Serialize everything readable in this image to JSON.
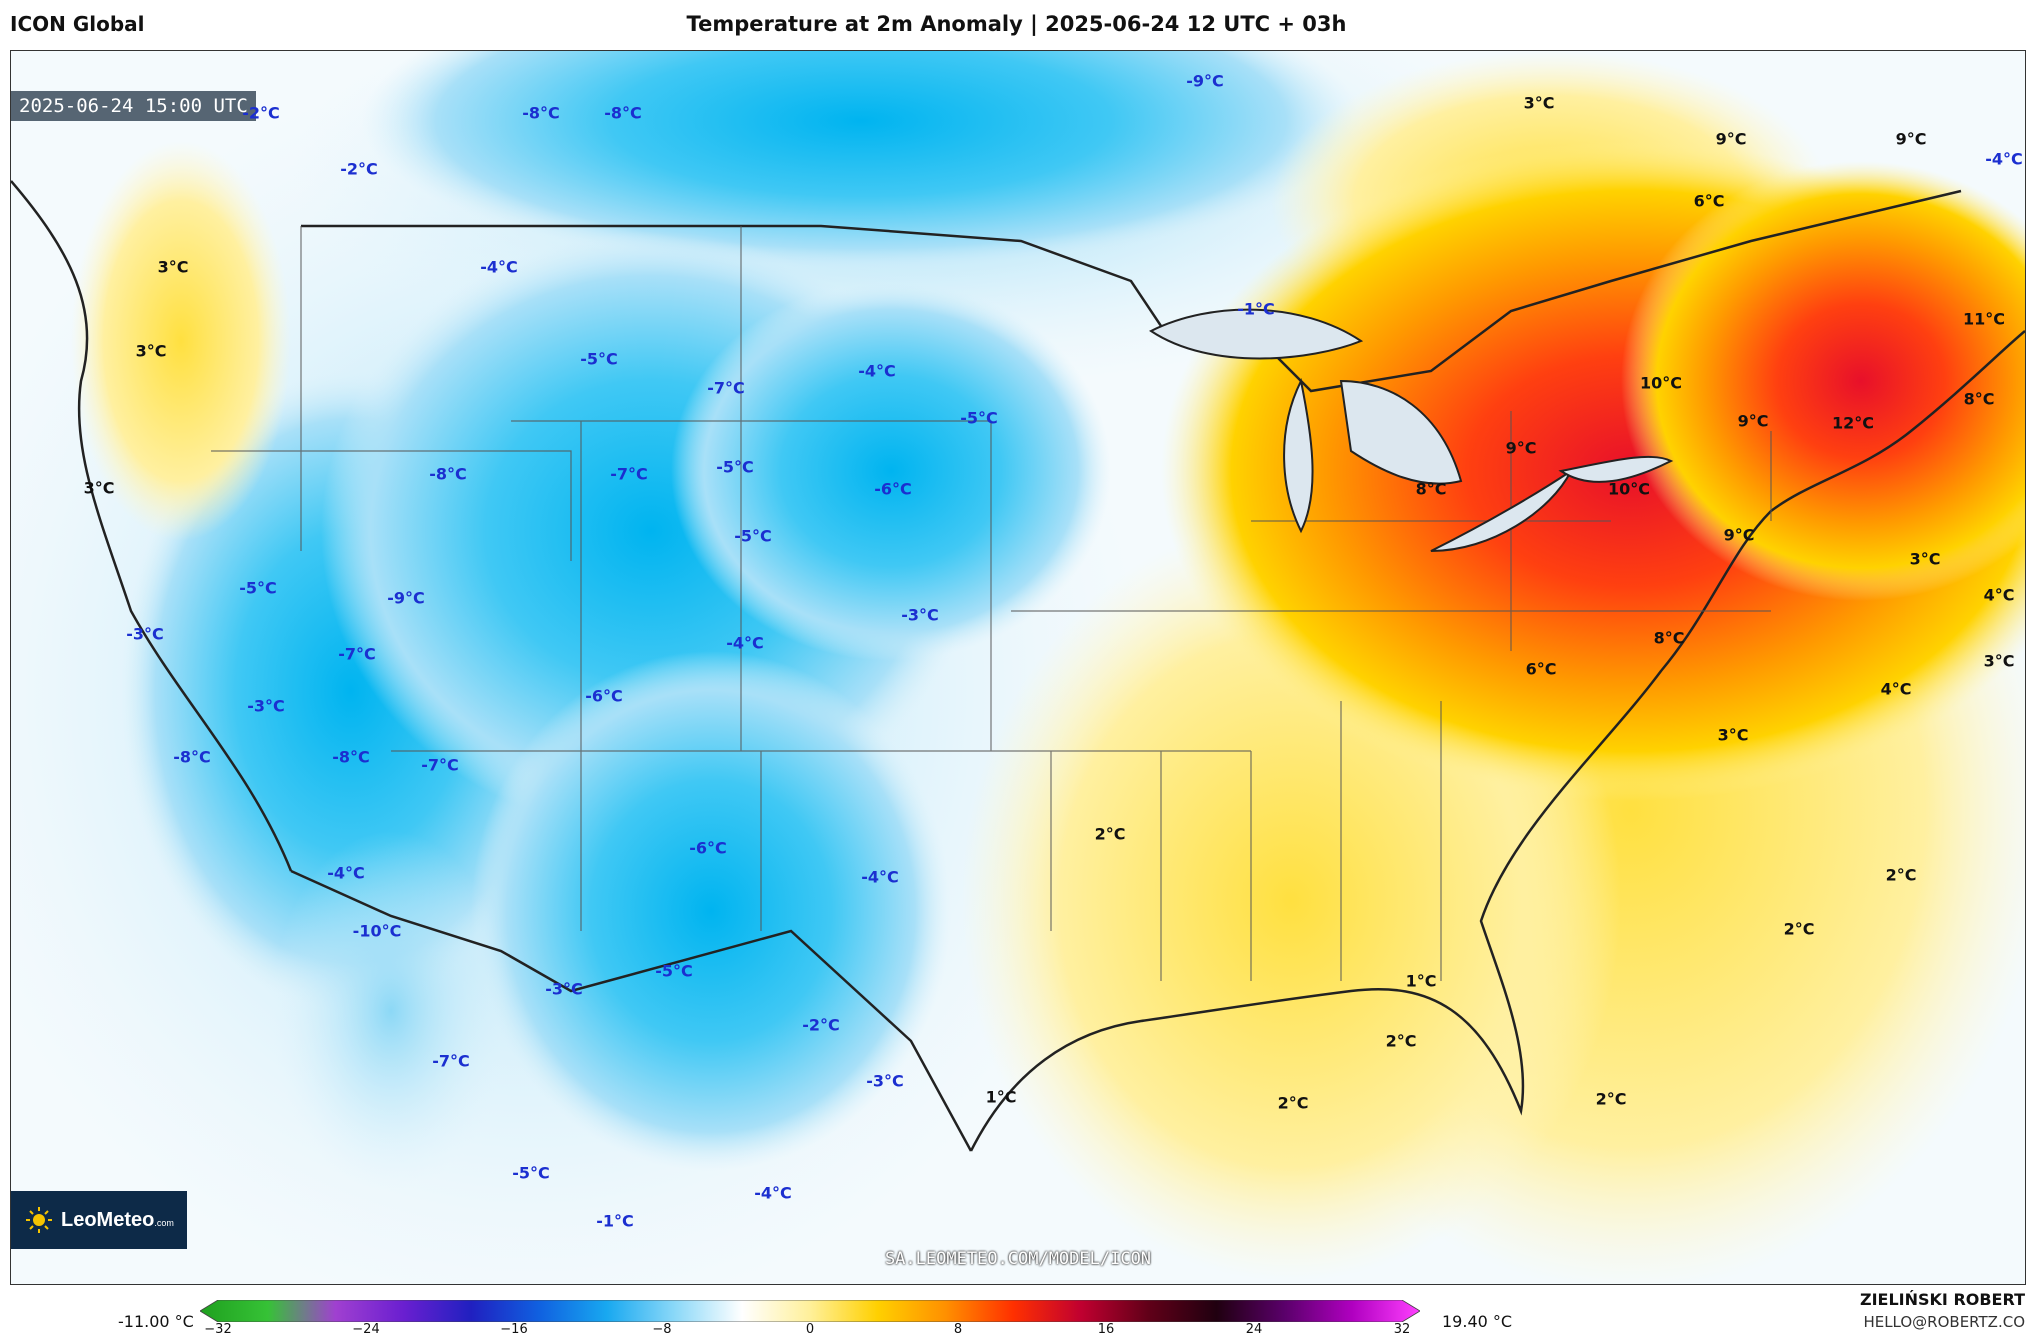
{
  "header": {
    "model": "ICON Global",
    "title": "Temperature at 2m Anomaly | 2025-06-24 12 UTC + 03h"
  },
  "map": {
    "valid_time": "2025-06-24 15:00 UTC",
    "source_url": "SA.LEOMETEO.COM/MODEL/ICON",
    "logo_text": "LeoMeteo",
    "logo_suffix": ".com",
    "labels": [
      {
        "text": "-2°C",
        "kind": "cold"
      },
      {
        "text": "-8°C",
        "kind": "cold"
      },
      {
        "text": "-8°C",
        "kind": "cold"
      },
      {
        "text": "-9°C",
        "kind": "cold"
      },
      {
        "text": "3°C",
        "kind": "warm"
      },
      {
        "text": "9°C",
        "kind": "warm"
      },
      {
        "text": "9°C",
        "kind": "warm"
      },
      {
        "text": "-4°C",
        "kind": "cold"
      },
      {
        "text": "-2°C",
        "kind": "cold"
      },
      {
        "text": "6°C",
        "kind": "warm"
      },
      {
        "text": "3°C",
        "kind": "warm"
      },
      {
        "text": "-4°C",
        "kind": "cold"
      },
      {
        "text": "-1°C",
        "kind": "cold"
      },
      {
        "text": "11°C",
        "kind": "warm"
      },
      {
        "text": "3°C",
        "kind": "warm"
      },
      {
        "text": "-5°C",
        "kind": "cold"
      },
      {
        "text": "-4°C",
        "kind": "cold"
      },
      {
        "text": "10°C",
        "kind": "warm"
      },
      {
        "text": "-7°C",
        "kind": "cold"
      },
      {
        "text": "-5°C",
        "kind": "cold"
      },
      {
        "text": "9°C",
        "kind": "warm"
      },
      {
        "text": "12°C",
        "kind": "warm"
      },
      {
        "text": "8°C",
        "kind": "warm"
      },
      {
        "text": "9°C",
        "kind": "warm"
      },
      {
        "text": "-8°C",
        "kind": "cold"
      },
      {
        "text": "-7°C",
        "kind": "cold"
      },
      {
        "text": "-5°C",
        "kind": "cold"
      },
      {
        "text": "3°C",
        "kind": "warm"
      },
      {
        "text": "-6°C",
        "kind": "cold"
      },
      {
        "text": "8°C",
        "kind": "warm"
      },
      {
        "text": "10°C",
        "kind": "warm"
      },
      {
        "text": "-5°C",
        "kind": "cold"
      },
      {
        "text": "9°C",
        "kind": "warm"
      },
      {
        "text": "3°C",
        "kind": "warm"
      },
      {
        "text": "-5°C",
        "kind": "cold"
      },
      {
        "text": "-9°C",
        "kind": "cold"
      },
      {
        "text": "-3°C",
        "kind": "cold"
      },
      {
        "text": "4°C",
        "kind": "warm"
      },
      {
        "text": "-3°C",
        "kind": "cold"
      },
      {
        "text": "-4°C",
        "kind": "cold"
      },
      {
        "text": "8°C",
        "kind": "warm"
      },
      {
        "text": "-7°C",
        "kind": "cold"
      },
      {
        "text": "6°C",
        "kind": "warm"
      },
      {
        "text": "3°C",
        "kind": "warm"
      },
      {
        "text": "-6°C",
        "kind": "cold"
      },
      {
        "text": "4°C",
        "kind": "warm"
      },
      {
        "text": "-3°C",
        "kind": "cold"
      },
      {
        "text": "3°C",
        "kind": "warm"
      },
      {
        "text": "-8°C",
        "kind": "cold"
      },
      {
        "text": "-8°C",
        "kind": "cold"
      },
      {
        "text": "-7°C",
        "kind": "cold"
      },
      {
        "text": "2°C",
        "kind": "warm"
      },
      {
        "text": "-6°C",
        "kind": "cold"
      },
      {
        "text": "-4°C",
        "kind": "cold"
      },
      {
        "text": "-4°C",
        "kind": "cold"
      },
      {
        "text": "2°C",
        "kind": "warm"
      },
      {
        "text": "-10°C",
        "kind": "cold"
      },
      {
        "text": "2°C",
        "kind": "warm"
      },
      {
        "text": "-5°C",
        "kind": "cold"
      },
      {
        "text": "1°C",
        "kind": "warm"
      },
      {
        "text": "-3°C",
        "kind": "cold"
      },
      {
        "text": "-2°C",
        "kind": "cold"
      },
      {
        "text": "2°C",
        "kind": "warm"
      },
      {
        "text": "-7°C",
        "kind": "cold"
      },
      {
        "text": "-3°C",
        "kind": "cold"
      },
      {
        "text": "1°C",
        "kind": "warm"
      },
      {
        "text": "2°C",
        "kind": "warm"
      },
      {
        "text": "2°C",
        "kind": "warm"
      },
      {
        "text": "-5°C",
        "kind": "cold"
      },
      {
        "text": "-4°C",
        "kind": "cold"
      },
      {
        "text": "-1°C",
        "kind": "cold"
      }
    ]
  },
  "colorbar": {
    "min_label": "-11.00 °C",
    "max_label": "19.40 °C",
    "ticks": [
      "−32",
      "−24",
      "−16",
      "−8",
      "0",
      "8",
      "16",
      "24",
      "32"
    ],
    "stops": [
      "#1fa01f",
      "#36c236",
      "#a040d0",
      "#6a1fd0",
      "#2020c0",
      "#1060e0",
      "#18a8f0",
      "#8ad8f8",
      "#ffffff",
      "#fff09a",
      "#ffd000",
      "#ff9000",
      "#ff3000",
      "#c00030",
      "#600018",
      "#200010",
      "#5a006a",
      "#b000c0",
      "#ff40ff"
    ]
  },
  "credits": {
    "author": "ZIELIŃSKI ROBERT",
    "email": "HELLO@ROBERTZ.CO"
  }
}
